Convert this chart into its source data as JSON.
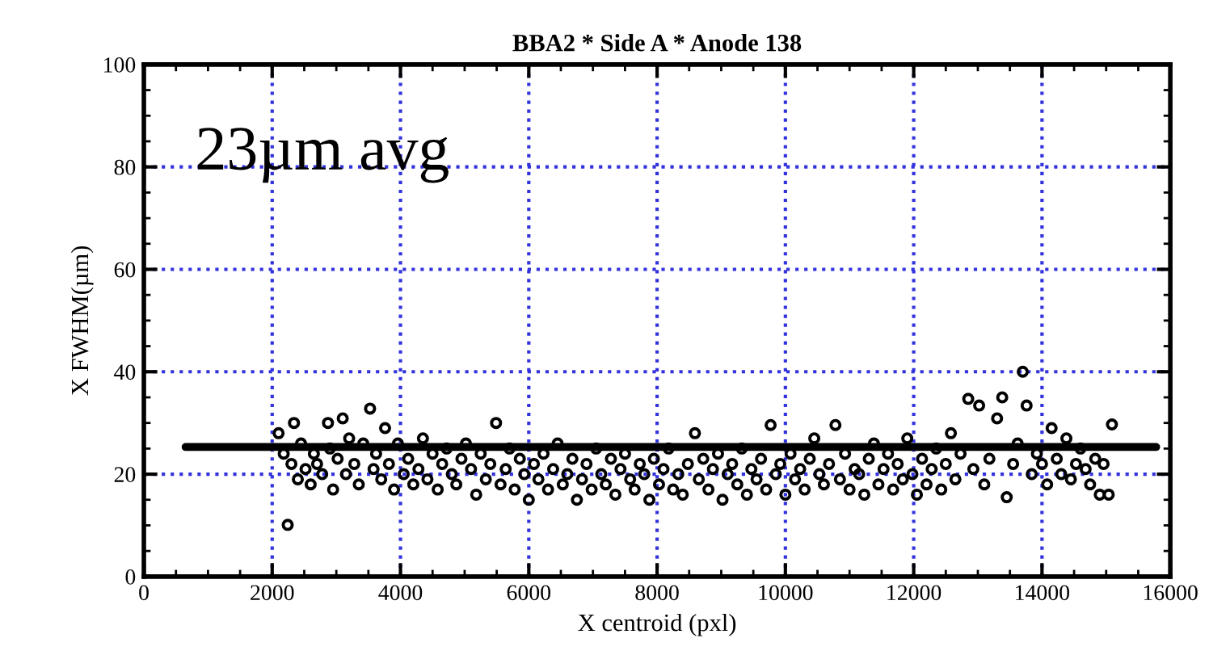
{
  "chart_data": {
    "type": "scatter",
    "title": "BBA2 * Side A * Anode 138",
    "xlabel": "X centroid (pxl)",
    "ylabel": "X FWHM(µm)",
    "annotations": [
      "23µm avg"
    ],
    "xlim": [
      0,
      16000
    ],
    "ylim": [
      0,
      100
    ],
    "xticks": [
      0,
      2000,
      4000,
      6000,
      8000,
      10000,
      12000,
      14000,
      16000
    ],
    "yticks": [
      0,
      20,
      40,
      60,
      80,
      100
    ],
    "grid": true,
    "series": [
      {
        "marker": "circle",
        "color": "#000000",
        "x": [
          2100,
          2180,
          2242,
          2300,
          2340,
          2400,
          2450,
          2520,
          2600,
          2650,
          2700,
          2780,
          2870,
          2900,
          2950,
          3020,
          3100,
          3150,
          3200,
          3280,
          3350,
          3420,
          3526,
          3580,
          3620,
          3700,
          3760,
          3820,
          3900,
          3960,
          4050,
          4120,
          4200,
          4280,
          4350,
          4420,
          4500,
          4580,
          4650,
          4720,
          4800,
          4870,
          4950,
          5020,
          5100,
          5180,
          5250,
          5330,
          5400,
          5490,
          5560,
          5640,
          5700,
          5780,
          5860,
          5930,
          6000,
          6080,
          6150,
          6230,
          6300,
          6380,
          6450,
          6530,
          6600,
          6680,
          6750,
          6830,
          6900,
          6980,
          7050,
          7130,
          7200,
          7280,
          7350,
          7430,
          7500,
          7580,
          7650,
          7730,
          7800,
          7880,
          7950,
          8030,
          8100,
          8180,
          8250,
          8330,
          8400,
          8480,
          8590,
          8650,
          8720,
          8800,
          8870,
          8950,
          9020,
          9100,
          9170,
          9250,
          9320,
          9400,
          9470,
          9550,
          9620,
          9700,
          9770,
          9850,
          9920,
          10000,
          10080,
          10150,
          10230,
          10300,
          10380,
          10450,
          10530,
          10600,
          10680,
          10780,
          10850,
          10930,
          11000,
          11080,
          11150,
          11230,
          11300,
          11380,
          11450,
          11530,
          11600,
          11680,
          11750,
          11830,
          11900,
          11980,
          12050,
          12130,
          12200,
          12280,
          12350,
          12430,
          12500,
          12580,
          12650,
          12730,
          12850,
          12930,
          13020,
          13100,
          13180,
          13300,
          13380,
          13450,
          13550,
          13620,
          13700,
          13760,
          13840,
          13920,
          14000,
          14080,
          14150,
          14230,
          14300,
          14380,
          14450,
          14530,
          14600,
          14680,
          14750,
          14830,
          14900,
          14960,
          15040,
          15090
        ],
        "values": [
          28,
          24,
          10.1,
          22,
          30,
          19,
          26,
          21,
          18,
          24,
          22,
          20,
          30,
          25,
          17,
          23,
          30.9,
          20,
          27,
          22,
          18,
          26,
          32.8,
          21,
          24,
          19,
          29,
          22,
          17,
          26,
          20,
          23,
          18,
          21,
          27,
          19,
          24,
          17,
          22,
          25,
          20,
          18,
          23,
          26,
          21,
          16,
          24,
          19,
          22,
          30,
          18,
          21,
          25,
          17,
          23,
          20,
          15,
          22,
          19,
          24,
          17,
          21,
          26,
          18,
          20,
          23,
          15,
          19,
          22,
          17,
          25,
          20,
          18,
          23,
          16,
          21,
          24,
          19,
          17,
          22,
          20,
          15,
          23,
          18,
          21,
          25,
          17,
          20,
          16,
          22,
          28,
          19,
          23,
          17,
          21,
          24,
          15,
          20,
          22,
          18,
          25,
          16,
          21,
          19,
          23,
          17,
          29.6,
          20,
          22,
          16,
          24,
          19,
          21,
          17,
          23,
          27,
          20,
          18,
          22,
          29.6,
          19,
          24,
          17,
          21,
          20,
          16,
          23,
          26,
          18,
          21,
          24,
          17,
          22,
          19,
          27,
          20,
          16,
          23,
          18,
          21,
          25,
          17,
          22,
          28,
          19,
          24,
          34.7,
          21,
          33.4,
          18,
          23,
          30.9,
          35,
          15.5,
          22,
          26,
          40,
          33.4,
          20,
          24,
          22,
          18,
          29,
          23,
          20,
          27,
          19,
          22,
          25,
          21,
          18,
          23,
          16,
          22,
          16,
          29.7
        ]
      },
      {
        "type": "line",
        "color": "#000000",
        "x": [
          650,
          15780
        ],
        "values": [
          25.3,
          25.3
        ]
      }
    ]
  }
}
